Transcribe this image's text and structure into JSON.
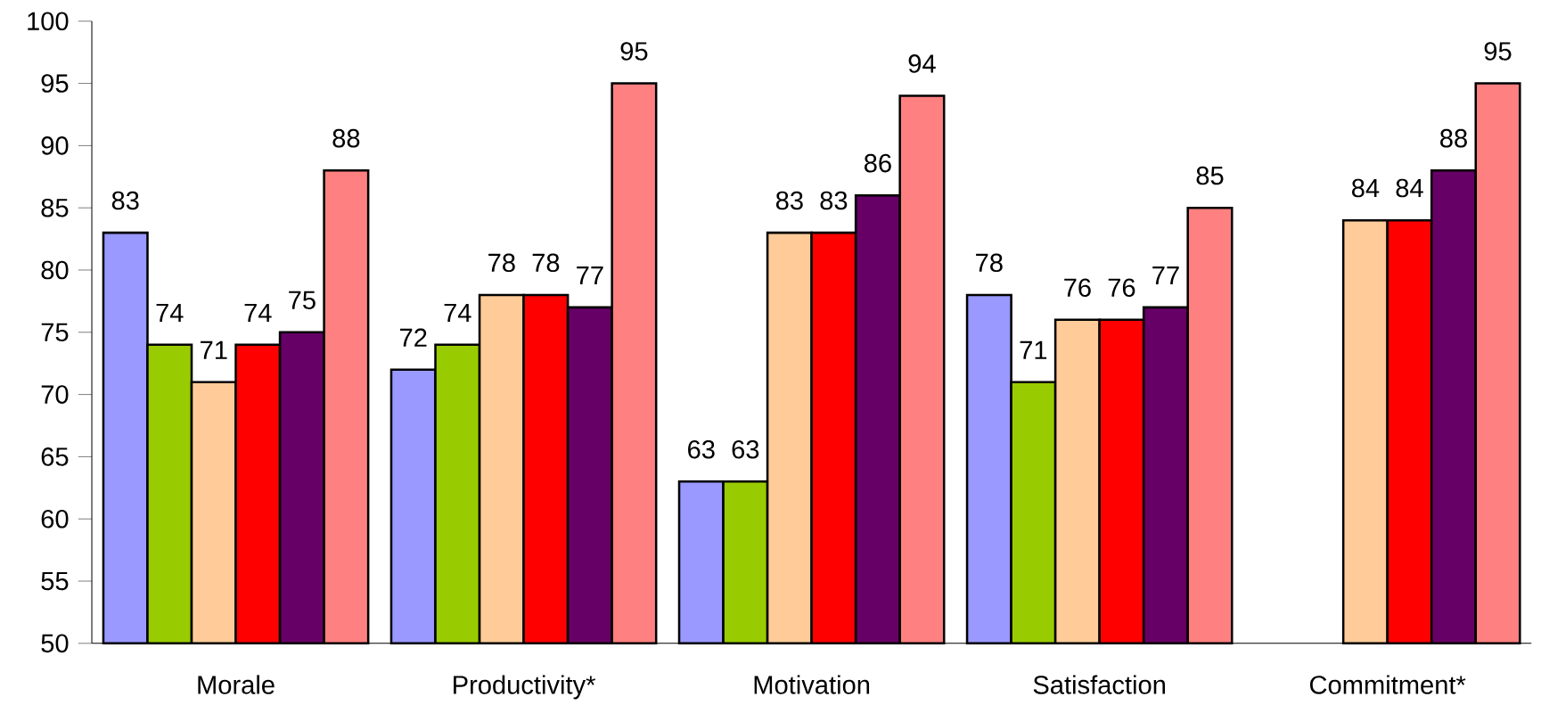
{
  "chart_data": {
    "type": "bar",
    "categories": [
      "Morale",
      "Productivity*",
      "Motivation",
      "Satisfaction",
      "Commitment*"
    ],
    "series": [
      {
        "color": "#9999ff",
        "values": [
          83,
          72,
          63,
          78,
          null
        ]
      },
      {
        "color": "#99cc00",
        "values": [
          74,
          74,
          63,
          71,
          null
        ]
      },
      {
        "color": "#ffcc99",
        "values": [
          71,
          78,
          83,
          76,
          84
        ]
      },
      {
        "color": "#ff0000",
        "values": [
          74,
          78,
          83,
          76,
          84
        ]
      },
      {
        "color": "#660066",
        "values": [
          75,
          77,
          86,
          77,
          88
        ]
      },
      {
        "color": "#ff8080",
        "values": [
          88,
          95,
          94,
          85,
          95
        ]
      }
    ],
    "ylim": [
      50,
      100
    ],
    "yticks": [
      50,
      55,
      60,
      65,
      70,
      75,
      80,
      85,
      90,
      95,
      100
    ],
    "data_labels": true
  }
}
